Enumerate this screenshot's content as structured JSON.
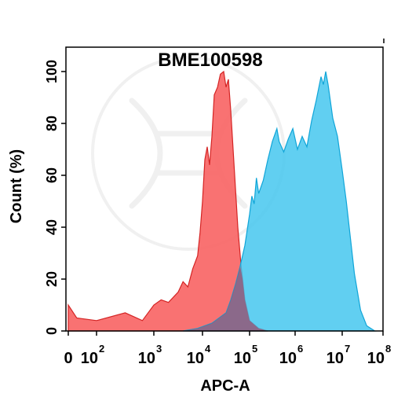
{
  "chart_data": {
    "type": "area",
    "title": "BME100598",
    "xlabel": "APC-A",
    "ylabel": "Count  (%)",
    "xscale": "biexponential (log-like)",
    "ylim": [
      0,
      100
    ],
    "yticks": [
      0,
      20,
      40,
      60,
      80,
      100
    ],
    "xticks": [
      {
        "base": "0",
        "exp": ""
      },
      {
        "base": "10",
        "exp": "2"
      },
      {
        "base": "10",
        "exp": "3"
      },
      {
        "base": "10",
        "exp": "4"
      },
      {
        "base": "10",
        "exp": "5"
      },
      {
        "base": "10",
        "exp": "6"
      },
      {
        "base": "10",
        "exp": "7"
      },
      {
        "base": "10",
        "exp": "8"
      }
    ],
    "grid": false,
    "legend": "none",
    "series": [
      {
        "color": "#f96666",
        "edge": "#d42424",
        "points": [
          [
            0,
            10
          ],
          [
            0.3,
            5
          ],
          [
            1.0,
            4
          ],
          [
            1.5,
            7
          ],
          [
            1.8,
            4
          ],
          [
            2.0,
            10
          ],
          [
            2.15,
            12
          ],
          [
            2.3,
            11
          ],
          [
            2.5,
            15
          ],
          [
            2.6,
            19
          ],
          [
            2.7,
            17
          ],
          [
            2.8,
            24
          ],
          [
            2.9,
            29
          ],
          [
            2.95,
            38
          ],
          [
            3.0,
            50
          ],
          [
            3.05,
            66
          ],
          [
            3.1,
            71
          ],
          [
            3.15,
            64
          ],
          [
            3.2,
            75
          ],
          [
            3.25,
            91
          ],
          [
            3.32,
            94
          ],
          [
            3.38,
            99
          ],
          [
            3.45,
            100
          ],
          [
            3.5,
            94
          ],
          [
            3.55,
            97
          ],
          [
            3.6,
            85
          ],
          [
            3.65,
            70
          ],
          [
            3.7,
            55
          ],
          [
            3.75,
            40
          ],
          [
            3.82,
            25
          ],
          [
            3.9,
            12
          ],
          [
            4.0,
            4
          ],
          [
            4.2,
            1
          ],
          [
            4.4,
            0
          ]
        ]
      },
      {
        "color": "#3ec4ee",
        "edge": "#10a5d8",
        "points": [
          [
            2.6,
            0
          ],
          [
            2.9,
            1
          ],
          [
            3.2,
            3
          ],
          [
            3.5,
            7
          ],
          [
            3.6,
            12
          ],
          [
            3.7,
            18
          ],
          [
            3.8,
            25
          ],
          [
            3.9,
            33
          ],
          [
            4.0,
            45
          ],
          [
            4.05,
            52
          ],
          [
            4.1,
            49
          ],
          [
            4.15,
            59
          ],
          [
            4.2,
            53
          ],
          [
            4.3,
            58
          ],
          [
            4.4,
            66
          ],
          [
            4.5,
            73
          ],
          [
            4.6,
            78
          ],
          [
            4.65,
            73
          ],
          [
            4.75,
            69
          ],
          [
            4.85,
            74
          ],
          [
            4.95,
            78
          ],
          [
            5.05,
            70
          ],
          [
            5.15,
            75
          ],
          [
            5.25,
            71
          ],
          [
            5.35,
            81
          ],
          [
            5.45,
            89
          ],
          [
            5.55,
            98
          ],
          [
            5.6,
            95
          ],
          [
            5.65,
            100
          ],
          [
            5.7,
            95
          ],
          [
            5.8,
            82
          ],
          [
            5.9,
            75
          ],
          [
            6.0,
            62
          ],
          [
            6.1,
            50
          ],
          [
            6.2,
            36
          ],
          [
            6.3,
            22
          ],
          [
            6.45,
            8
          ],
          [
            6.6,
            2
          ],
          [
            6.8,
            0
          ]
        ]
      }
    ]
  }
}
